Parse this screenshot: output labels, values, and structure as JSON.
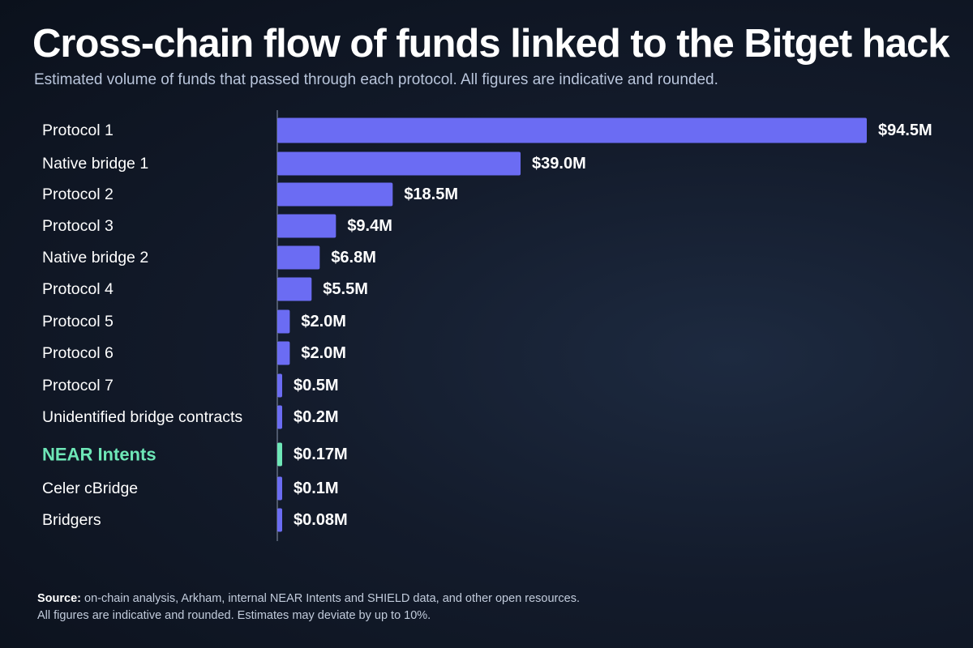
{
  "title": "Cross-chain flow of funds linked to the Bitget hack",
  "subtitle": "Estimated volume of funds that passed through each protocol. All figures are indicative and rounded.",
  "footer": {
    "source_label": "Source:",
    "source_text": " on-chain analysis, Arkham, internal NEAR Intents and SHIELD data, and other open resources.",
    "note": "All figures are indicative and rounded. Estimates may deviate by up to 10%."
  },
  "colors": {
    "bar": "#6b6cf3",
    "highlight": "#6ee7b7",
    "label": "#ffffff",
    "axis": "#8a96ad"
  },
  "chart_data": {
    "type": "bar",
    "orientation": "horizontal",
    "unit": "$M",
    "categories": [
      "Protocol 1",
      "Native bridge 1",
      "Protocol 2",
      "Protocol 3",
      "Native bridge 2",
      "Protocol 4",
      "Protocol 5",
      "Protocol 6",
      "Protocol 7",
      "Unidentified bridge contracts",
      "NEAR Intents",
      "Celer cBridge",
      "Bridgers"
    ],
    "values": [
      94.5,
      39.0,
      18.5,
      9.4,
      6.8,
      5.5,
      2.0,
      2.0,
      0.5,
      0.2,
      0.17,
      0.1,
      0.08
    ],
    "data_labels": [
      "$94.5M",
      "$39.0M",
      "$18.5M",
      "$9.4M",
      "$6.8M",
      "$5.5M",
      "$2.0M",
      "$2.0M",
      "$0.5M",
      "$0.2M",
      "$0.17M",
      "$0.1M",
      "$0.08M"
    ],
    "highlight_category": "NEAR Intents",
    "xlim": [
      0,
      94.5
    ],
    "grid": false,
    "legend": "none"
  }
}
